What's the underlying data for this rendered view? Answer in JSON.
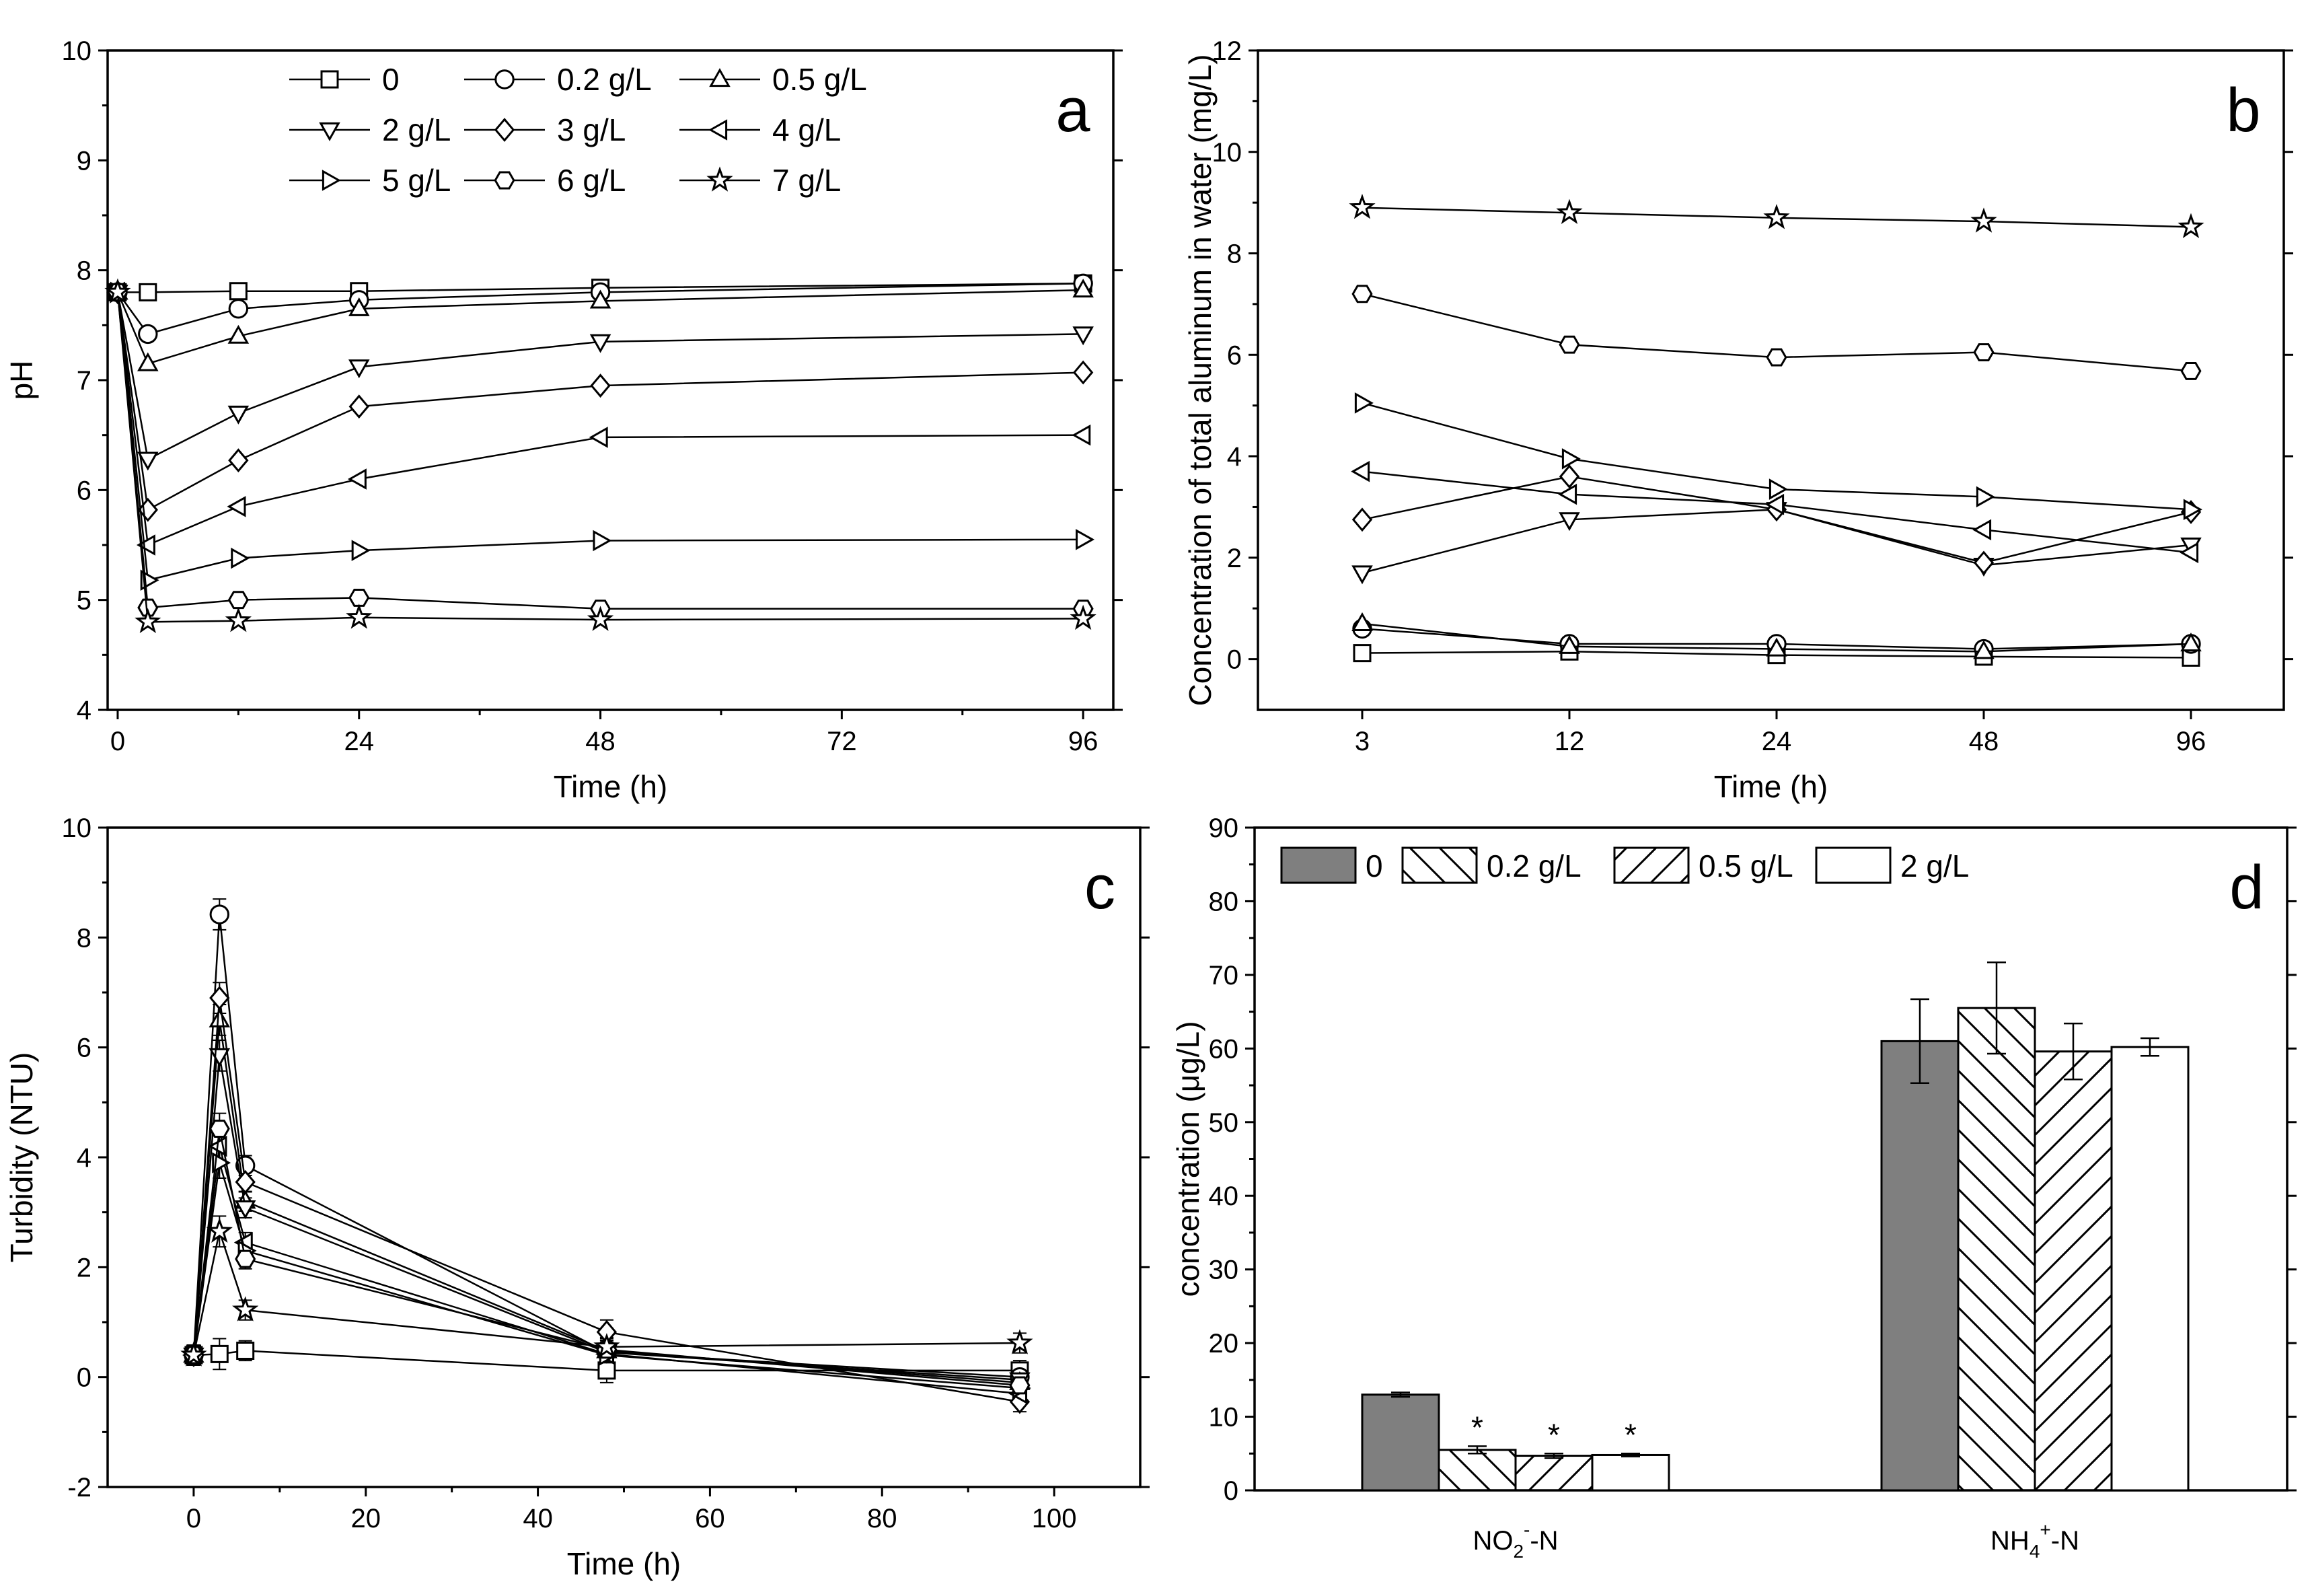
{
  "chart_data": [
    {
      "panel": "a",
      "type": "line",
      "xlabel": "Time (h)",
      "ylabel": "pH",
      "xlim": [
        -1,
        99
      ],
      "ylim": [
        4,
        10
      ],
      "xticks": [
        0,
        24,
        48,
        72,
        96
      ],
      "yticks": [
        4,
        5,
        6,
        7,
        8,
        9,
        10
      ],
      "legend_position": "top",
      "x": [
        0,
        3,
        12,
        24,
        48,
        96
      ],
      "series": [
        {
          "name": "0",
          "marker": "square",
          "values": [
            7.8,
            7.8,
            7.81,
            7.81,
            7.84,
            7.88
          ]
        },
        {
          "name": "0.2 g/L",
          "marker": "circle",
          "values": [
            7.8,
            7.42,
            7.65,
            7.73,
            7.8,
            7.88
          ]
        },
        {
          "name": "0.5 g/L",
          "marker": "triangle-up",
          "values": [
            7.8,
            7.15,
            7.4,
            7.65,
            7.72,
            7.82
          ]
        },
        {
          "name": "2 g/L",
          "marker": "triangle-down",
          "values": [
            7.8,
            6.28,
            6.7,
            7.12,
            7.35,
            7.42
          ]
        },
        {
          "name": "3 g/L",
          "marker": "diamond",
          "values": [
            7.8,
            5.82,
            6.27,
            6.76,
            6.95,
            7.07
          ]
        },
        {
          "name": "4 g/L",
          "marker": "triangle-left",
          "values": [
            7.8,
            5.5,
            5.85,
            6.1,
            6.48,
            6.5
          ]
        },
        {
          "name": "5 g/L",
          "marker": "triangle-right",
          "values": [
            7.8,
            5.18,
            5.38,
            5.45,
            5.54,
            5.55
          ]
        },
        {
          "name": "6 g/L",
          "marker": "hexagon",
          "values": [
            7.8,
            4.93,
            5.0,
            5.02,
            4.92,
            4.92
          ]
        },
        {
          "name": "7 g/L",
          "marker": "star",
          "values": [
            7.8,
            4.8,
            4.81,
            4.84,
            4.82,
            4.83
          ]
        }
      ],
      "annotation": "a"
    },
    {
      "panel": "b",
      "type": "line",
      "xlabel": "Time (h)",
      "ylabel": "Concentration of total aluminum in water (mg/L)",
      "xcategories": [
        "3",
        "12",
        "24",
        "48",
        "96"
      ],
      "ylim": [
        -1,
        12
      ],
      "yticks": [
        0,
        2,
        4,
        6,
        8,
        10,
        12
      ],
      "series": [
        {
          "name": "0",
          "marker": "square",
          "values": [
            0.12,
            0.15,
            0.08,
            0.05,
            0.03
          ]
        },
        {
          "name": "0.2 g/L",
          "marker": "circle",
          "values": [
            0.6,
            0.3,
            0.3,
            0.2,
            0.3
          ]
        },
        {
          "name": "0.5 g/L",
          "marker": "triangle-up",
          "values": [
            0.7,
            0.25,
            0.2,
            0.15,
            0.3
          ]
        },
        {
          "name": "2 g/L",
          "marker": "triangle-down",
          "values": [
            1.7,
            2.75,
            2.95,
            1.85,
            2.25
          ]
        },
        {
          "name": "3 g/L",
          "marker": "diamond",
          "values": [
            2.75,
            3.6,
            2.95,
            1.9,
            2.9
          ]
        },
        {
          "name": "4 g/L",
          "marker": "triangle-left",
          "values": [
            3.7,
            3.25,
            3.05,
            2.55,
            2.1
          ]
        },
        {
          "name": "5 g/L",
          "marker": "triangle-right",
          "values": [
            5.05,
            3.95,
            3.35,
            3.2,
            2.95
          ]
        },
        {
          "name": "6 g/L",
          "marker": "hexagon",
          "values": [
            7.2,
            6.2,
            5.95,
            6.05,
            5.68
          ]
        },
        {
          "name": "7 g/L",
          "marker": "star",
          "values": [
            8.9,
            8.8,
            8.7,
            8.63,
            8.52
          ]
        }
      ],
      "annotation": "b"
    },
    {
      "panel": "c",
      "type": "line",
      "xlabel": "Time (h)",
      "ylabel": "Turbidity (NTU)",
      "xlim": [
        -10,
        110
      ],
      "ylim": [
        -2,
        10
      ],
      "xticks": [
        0,
        20,
        40,
        60,
        80,
        100
      ],
      "yticks": [
        -2,
        0,
        2,
        4,
        6,
        8,
        10
      ],
      "x": [
        0,
        3,
        6,
        48,
        96
      ],
      "series": [
        {
          "name": "0",
          "marker": "square",
          "values": [
            0.4,
            0.42,
            0.48,
            0.12,
            0.12
          ]
        },
        {
          "name": "0.2 g/L",
          "marker": "circle",
          "values": [
            0.4,
            8.42,
            3.85,
            0.45,
            0.0
          ]
        },
        {
          "name": "0.5 g/L",
          "marker": "triangle-up",
          "values": [
            0.4,
            6.5,
            3.2,
            0.48,
            -0.1
          ]
        },
        {
          "name": "2 g/L",
          "marker": "triangle-down",
          "values": [
            0.4,
            5.85,
            3.08,
            0.45,
            -0.05
          ]
        },
        {
          "name": "3 g/L",
          "marker": "diamond",
          "values": [
            0.4,
            6.9,
            3.55,
            0.82,
            -0.45
          ]
        },
        {
          "name": "4 g/L",
          "marker": "triangle-left",
          "values": [
            0.4,
            4.2,
            2.45,
            0.42,
            -0.3
          ]
        },
        {
          "name": "5 g/L",
          "marker": "triangle-right",
          "values": [
            0.4,
            3.9,
            2.3,
            0.4,
            -0.2
          ]
        },
        {
          "name": "6 g/L",
          "marker": "hexagon",
          "values": [
            0.4,
            4.52,
            2.15,
            0.5,
            -0.15
          ]
        },
        {
          "name": "7 g/L",
          "marker": "star",
          "values": [
            0.4,
            2.65,
            1.22,
            0.55,
            0.62
          ]
        }
      ],
      "error_bars": {
        "series_index": 0,
        "x_index": [
          1
        ],
        "values": [
          0.25
        ]
      },
      "annotation": "c"
    },
    {
      "panel": "d",
      "type": "bar",
      "ylabel": "concentration (μg/L)",
      "ylim": [
        0,
        90
      ],
      "yticks": [
        0,
        10,
        20,
        30,
        40,
        50,
        60,
        70,
        80,
        90
      ],
      "categories": [
        "NO2--N",
        "NH4+-N"
      ],
      "category_labels": [
        {
          "base": "NO",
          "sub": "2",
          "sup": "-",
          "tail": "-N"
        },
        {
          "base": "NH",
          "sub": "4",
          "sup": "+",
          "tail": "-N"
        }
      ],
      "legend_position": "top",
      "series": [
        {
          "name": "0",
          "fill": "gray",
          "values": [
            13.0,
            61.0
          ],
          "errors": [
            0.3,
            5.7
          ]
        },
        {
          "name": "0.2 g/L",
          "fill": "hatch-back",
          "values": [
            5.5,
            65.5
          ],
          "errors": [
            0.5,
            6.2
          ]
        },
        {
          "name": "0.5 g/L",
          "fill": "hatch-forward",
          "values": [
            4.7,
            59.6
          ],
          "errors": [
            0.3,
            3.8
          ]
        },
        {
          "name": "2 g/L",
          "fill": "white",
          "values": [
            4.8,
            60.2
          ],
          "errors": [
            0.2,
            1.2
          ]
        }
      ],
      "significance": [
        {
          "category_index": 0,
          "series_index": 1,
          "label": "*"
        },
        {
          "category_index": 0,
          "series_index": 2,
          "label": "*"
        },
        {
          "category_index": 0,
          "series_index": 3,
          "label": "*"
        }
      ],
      "colors": {
        "gray": "#7f7f7f"
      },
      "annotation": "d"
    }
  ]
}
